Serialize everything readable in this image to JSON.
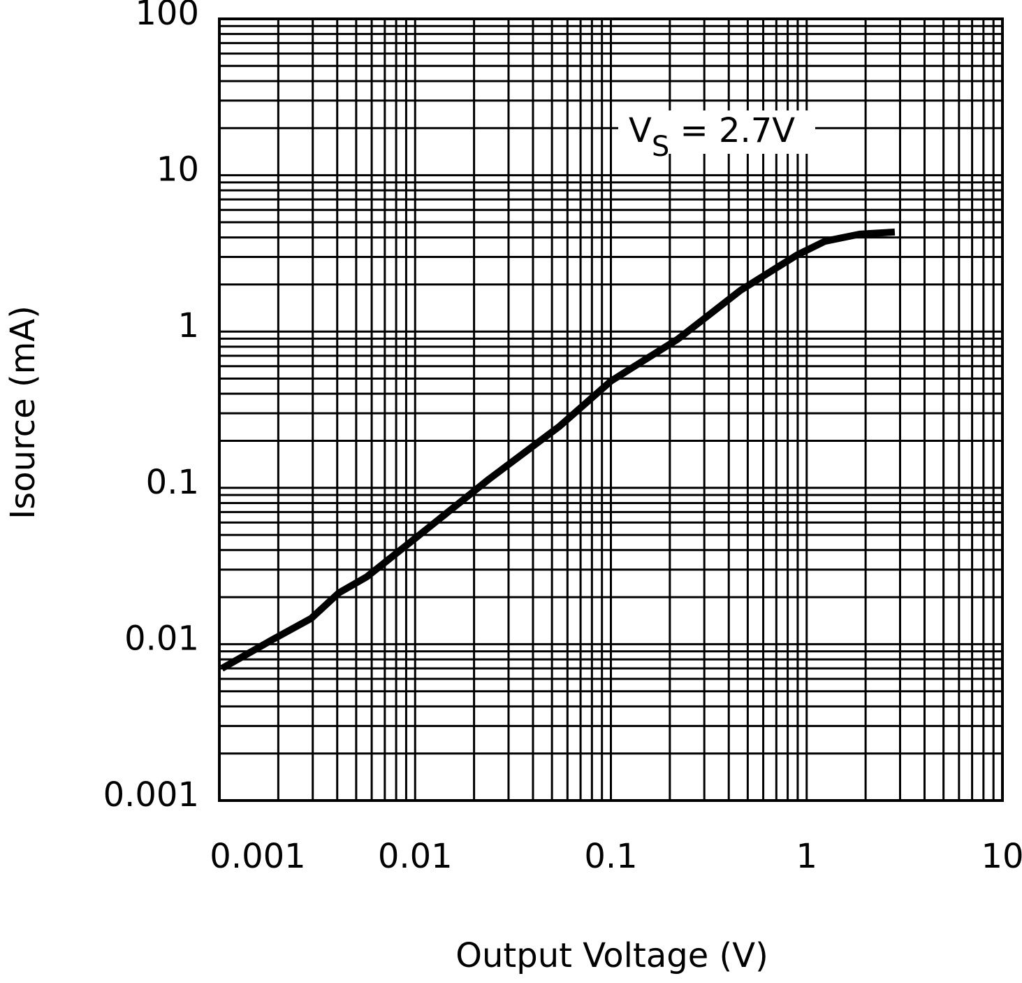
{
  "chart_data": {
    "type": "line",
    "x_label": "Output Voltage (V)",
    "y_label": "Isource (mA)",
    "x_log": true,
    "y_log": true,
    "grid": true,
    "minor_grid": true,
    "xlim": [
      0.001,
      10
    ],
    "xticks": [
      0.001,
      0.01,
      0.1,
      1,
      10
    ],
    "ylim": [
      0.001,
      100
    ],
    "yticks": [
      0.001,
      0.01,
      0.1,
      1,
      10,
      100
    ],
    "annotation": {
      "main": "V",
      "sub": "S",
      "rest": " = 2.7V"
    },
    "series": [
      {
        "color": "#000000",
        "x": [
          0.00103,
          0.00187,
          0.00294,
          0.00408,
          0.00567,
          0.01,
          0.0239,
          0.0545,
          0.1,
          0.22,
          0.461,
          0.89,
          1.24,
          1.87,
          2.82
        ],
        "values": [
          0.007,
          0.0107,
          0.0146,
          0.0213,
          0.027,
          0.0475,
          0.114,
          0.247,
          0.482,
          0.895,
          1.84,
          3.08,
          3.78,
          4.2,
          4.33
        ]
      }
    ]
  }
}
